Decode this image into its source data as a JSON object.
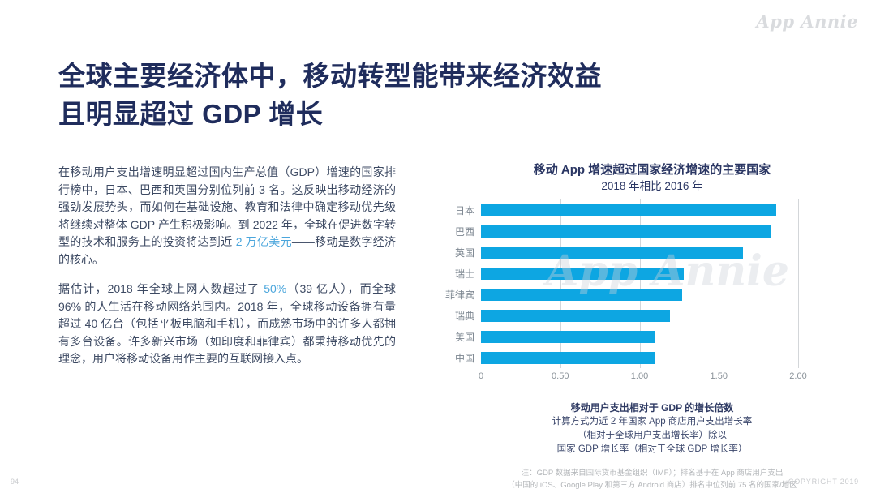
{
  "brand": {
    "logo_text": "App Annie"
  },
  "title": {
    "line1": "全球主要经济体中，移动转型能带来经济效益",
    "line2": "且明显超过 GDP 增长"
  },
  "paragraphs": {
    "p1_before": "在移动用户支出增速明显超过国内生产总值（GDP）增速的国家排行榜中，日本、巴西和英国分别位列前 3 名。这反映出移动经济的强劲发展势头，而如何在基础设施、教育和法律中确定移动优先级将继续对整体 GDP 产生积极影响。到 2022 年，全球在促进数字转型的技术和服务上的投资将达到近 ",
    "p1_link": "2 万亿美元",
    "p1_after": "——移动是数字经济的核心。",
    "p2_before": "据估计，2018 年全球上网人数超过了 ",
    "p2_link": "50%",
    "p2_after": "（39 亿人），而全球 96% 的人生活在移动网络范围内。2018 年，全球移动设备拥有量超过 40 亿台（包括平板电脑和手机），而成熟市场中的许多人都拥有多台设备。许多新兴市场（如印度和菲律宾）都秉持移动优先的理念，用户将移动设备用作主要的互联网接入点。"
  },
  "chart_data": {
    "type": "bar",
    "orientation": "horizontal",
    "title": "移动 App 增速超过国家经济增速的主要国家",
    "subtitle": "2018 年相比 2016 年",
    "categories": [
      "日本",
      "巴西",
      "英国",
      "瑞士",
      "菲律宾",
      "瑞典",
      "美国",
      "中国"
    ],
    "values": [
      1.86,
      1.83,
      1.65,
      1.28,
      1.27,
      1.19,
      1.1,
      1.1
    ],
    "xlim": [
      0,
      2.0
    ],
    "xticks": [
      {
        "value": 0,
        "label": "0"
      },
      {
        "value": 0.5,
        "label": "0.50"
      },
      {
        "value": 1.0,
        "label": "1.00"
      },
      {
        "value": 1.5,
        "label": "1.50"
      },
      {
        "value": 2.0,
        "label": "2.00"
      }
    ],
    "grid": true,
    "bar_color": "#0da6e2",
    "watermark": "App Annie"
  },
  "chart_footer": {
    "bold_line": "移动用户支出相对于 GDP 的增长倍数",
    "lines": [
      "计算方式为近 2 年国家 App 商店用户支出增长率",
      "（相对于全球用户支出增长率）除以",
      "国家 GDP 增长率（相对于全球 GDP 增长率）"
    ],
    "note_lines": [
      "注：GDP 数据来自国际货币基金组织（IMF）；排名基于在 App 商店用户支出",
      "（中国的 iOS、Google Play 和第三方 Android 商店）排名中位列前 75 名的国家/地区"
    ]
  },
  "footer": {
    "page_number": "94",
    "copyright": "COPYRIGHT 2019"
  }
}
